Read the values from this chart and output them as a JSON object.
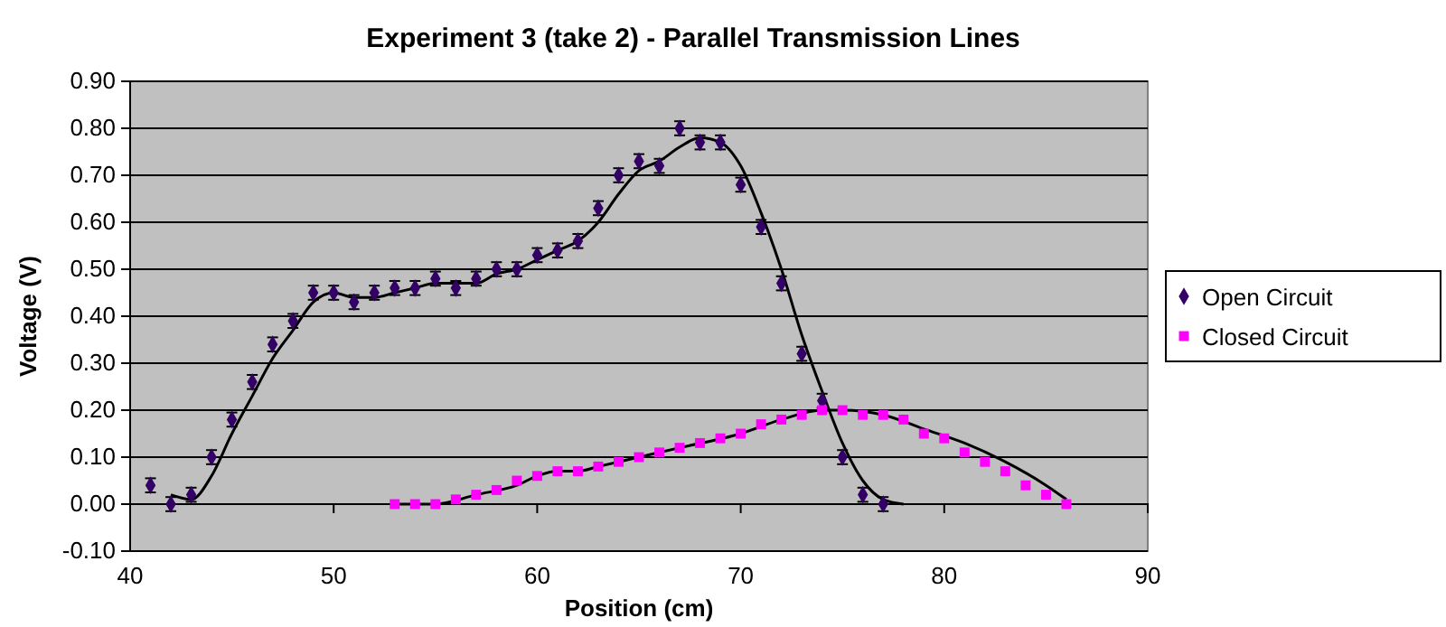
{
  "chart_data": {
    "type": "scatter",
    "title": "Experiment 3 (take 2) - Parallel Transmission Lines",
    "xlabel": "Position (cm)",
    "ylabel": "Voltage (V)",
    "xlim": [
      40,
      90
    ],
    "xticks": [
      40,
      50,
      60,
      70,
      80,
      90
    ],
    "ylim": [
      -0.1,
      0.9
    ],
    "yticks": [
      {
        "value": -0.1,
        "label": "-0.10"
      },
      {
        "value": 0,
        "label": "0.00"
      },
      {
        "value": 0.1,
        "label": "0.10"
      },
      {
        "value": 0.2,
        "label": "0.20"
      },
      {
        "value": 0.3,
        "label": "0.30"
      },
      {
        "value": 0.4,
        "label": "0.40"
      },
      {
        "value": 0.5,
        "label": "0.50"
      },
      {
        "value": 0.6,
        "label": "0.60"
      },
      {
        "value": 0.7,
        "label": "0.70"
      },
      {
        "value": 0.8,
        "label": "0.80"
      },
      {
        "value": 0.9,
        "label": "0.90"
      }
    ],
    "grid": "y",
    "legend": "right",
    "series": [
      {
        "type": "line",
        "color": "#000000",
        "x": [
          42,
          43,
          44,
          45,
          46,
          47,
          48,
          49,
          50,
          51,
          52,
          53,
          54,
          55,
          56,
          57,
          58,
          59,
          60,
          61,
          62,
          63,
          64,
          65,
          66,
          67,
          68,
          69,
          70,
          71,
          72,
          73,
          74,
          75,
          76,
          77,
          78
        ],
        "values": [
          0.02,
          0.01,
          0.06,
          0.15,
          0.23,
          0.31,
          0.37,
          0.43,
          0.45,
          0.44,
          0.44,
          0.45,
          0.46,
          0.47,
          0.47,
          0.47,
          0.49,
          0.5,
          0.52,
          0.54,
          0.56,
          0.6,
          0.66,
          0.71,
          0.73,
          0.76,
          0.78,
          0.77,
          0.72,
          0.62,
          0.5,
          0.36,
          0.24,
          0.13,
          0.05,
          0.01,
          0.0
        ]
      },
      {
        "type": "line",
        "color": "#000000",
        "x": [
          53,
          55,
          57,
          59,
          60,
          61,
          62,
          63,
          65,
          67,
          70,
          72,
          74,
          75,
          77,
          79,
          81,
          83,
          85,
          86
        ],
        "values": [
          0,
          0,
          0.02,
          0.04,
          0.06,
          0.07,
          0.07,
          0.08,
          0.1,
          0.12,
          0.15,
          0.18,
          0.2,
          0.2,
          0.19,
          0.16,
          0.13,
          0.09,
          0.04,
          0.01
        ]
      },
      {
        "name": "Open Circuit",
        "color": "#330066",
        "marker": "diamond",
        "x": [
          41,
          42,
          43,
          44,
          45,
          46,
          47,
          48,
          49,
          50,
          51,
          52,
          53,
          54,
          55,
          56,
          57,
          58,
          59,
          60,
          61,
          62,
          63,
          64,
          65,
          66,
          67,
          68,
          69,
          70,
          71,
          72,
          73,
          74,
          75,
          76,
          77
        ],
        "values": [
          0.04,
          0.0,
          0.02,
          0.1,
          0.18,
          0.26,
          0.34,
          0.39,
          0.45,
          0.45,
          0.43,
          0.45,
          0.46,
          0.46,
          0.48,
          0.46,
          0.48,
          0.5,
          0.5,
          0.53,
          0.54,
          0.56,
          0.63,
          0.7,
          0.73,
          0.72,
          0.8,
          0.77,
          0.77,
          0.68,
          0.59,
          0.47,
          0.32,
          0.22,
          0.1,
          0.02,
          0.0
        ],
        "errors": [
          0.015,
          0.015,
          0.015,
          0.015,
          0.015,
          0.015,
          0.015,
          0.015,
          0.015,
          0.015,
          0.015,
          0.015,
          0.015,
          0.015,
          0.015,
          0.015,
          0.015,
          0.015,
          0.015,
          0.015,
          0.015,
          0.015,
          0.015,
          0.015,
          0.015,
          0.015,
          0.015,
          0.015,
          0.015,
          0.015,
          0.015,
          0.015,
          0.015,
          0.015,
          0.015,
          0.015,
          0.015
        ]
      },
      {
        "name": "Closed Circuit",
        "color": "#ff00ff",
        "marker": "square",
        "x": [
          53,
          54,
          55,
          56,
          57,
          58,
          59,
          60,
          61,
          62,
          63,
          64,
          65,
          66,
          67,
          68,
          69,
          70,
          71,
          72,
          73,
          74,
          75,
          76,
          77,
          78,
          79,
          80,
          81,
          82,
          83,
          84,
          85,
          86
        ],
        "values": [
          0,
          0,
          0,
          0.01,
          0.02,
          0.03,
          0.05,
          0.06,
          0.07,
          0.07,
          0.08,
          0.09,
          0.1,
          0.11,
          0.12,
          0.13,
          0.14,
          0.15,
          0.17,
          0.18,
          0.19,
          0.2,
          0.2,
          0.19,
          0.19,
          0.18,
          0.15,
          0.14,
          0.11,
          0.09,
          0.07,
          0.04,
          0.02,
          0.0
        ]
      }
    ]
  }
}
